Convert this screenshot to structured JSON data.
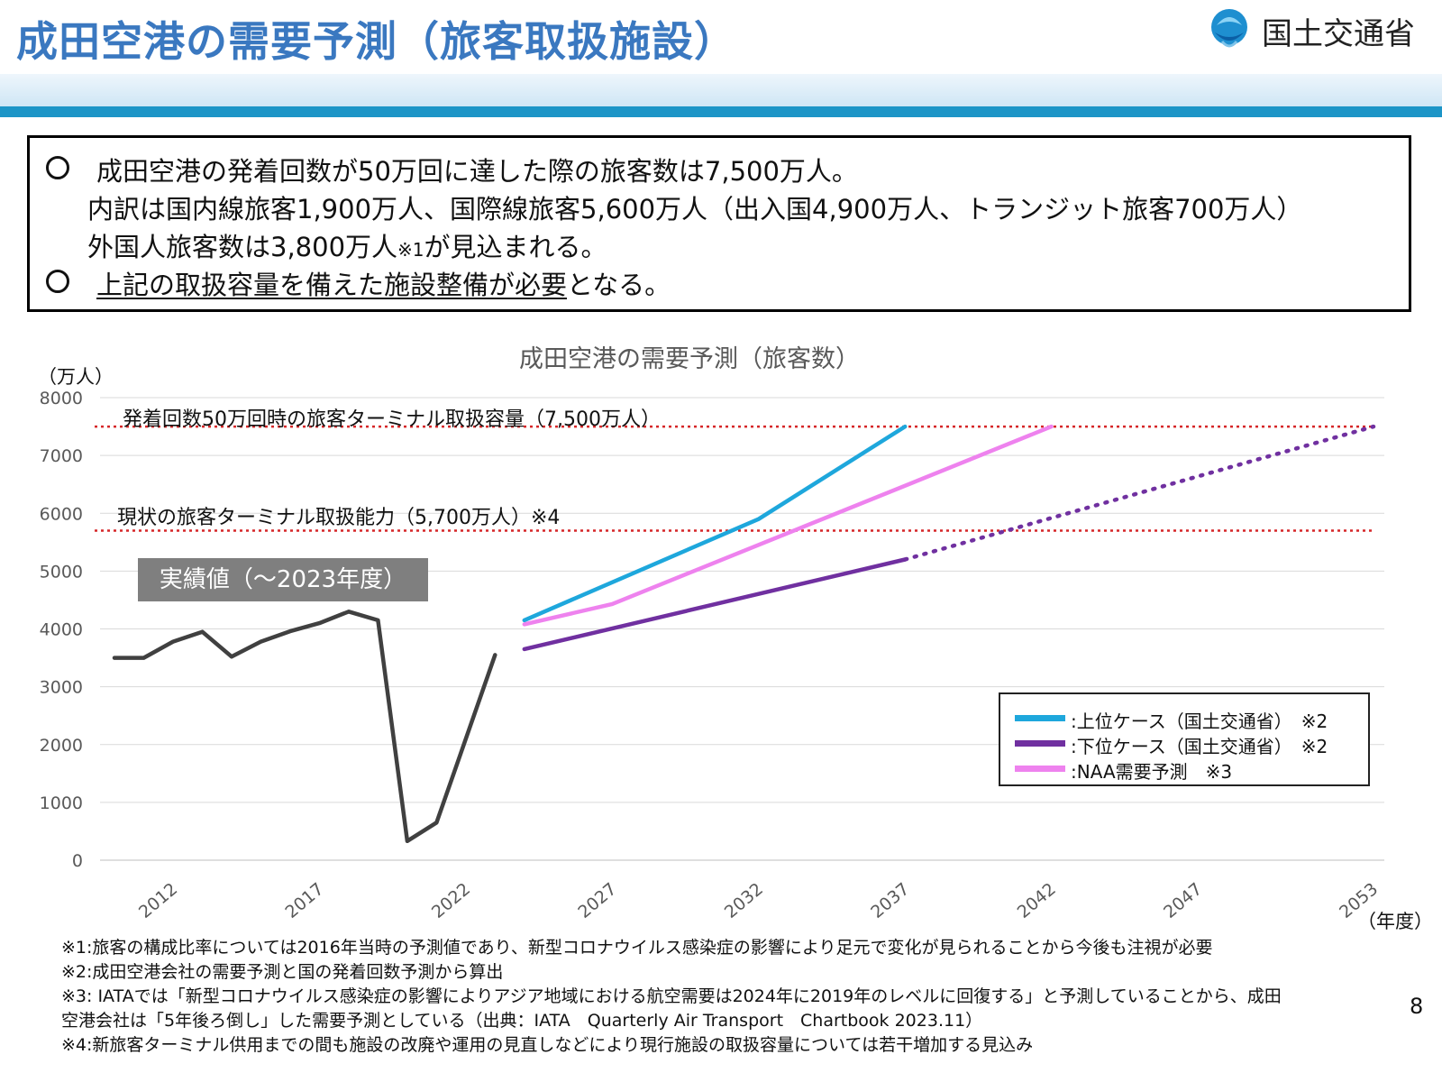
{
  "header": {
    "title": "成田空港の需要予測（旅客取扱施設）",
    "ministry": "国土交通省"
  },
  "summary": {
    "line1": "成田空港の発着回数が50万回に達した際の旅客数は7,500万人。",
    "line2": "内訳は国内線旅客1,900万人、国際線旅客5,600万人（出入国4,900万人、トランジット旅客700万人）",
    "line3_main": "外国人旅客数は3,800万人",
    "line3_note": "※1",
    "line3_end": "が見込まれる。",
    "line4_underlined": "上記の取扱容量を備えた施設整備が必要",
    "line4_end": "となる。"
  },
  "chart_data": {
    "type": "line",
    "title": "成田空港の需要予測（旅客数）",
    "ylabel": "（万人）",
    "xlabel": "（年度）",
    "ylim": [
      0,
      8000
    ],
    "y_ticks": [
      "0",
      "1000",
      "2000",
      "3000",
      "4000",
      "5000",
      "6000",
      "7000",
      "8000"
    ],
    "x_ticks": [
      "2012",
      "2017",
      "2022",
      "2027",
      "2032",
      "2037",
      "2042",
      "2047",
      "2053"
    ],
    "reference_lines": [
      {
        "label": "発着回数50万回時の旅客ターミナル取扱容量（7,500万人）",
        "value": 7500,
        "color": "#d62728"
      },
      {
        "label": "現状の旅客ターミナル取扱能力（5,700万人）※4",
        "value": 5700,
        "color": "#d62728"
      }
    ],
    "actual_label": "実績値（〜2023年度）",
    "series": [
      {
        "key": "actual",
        "color": "#404040",
        "dashed": false,
        "x": [
          2010,
          2011,
          2012,
          2013,
          2014,
          2015,
          2016,
          2017,
          2018,
          2019,
          2020,
          2021,
          2022,
          2023
        ],
        "y": [
          3500,
          3500,
          3780,
          3950,
          3520,
          3780,
          3960,
          4100,
          4300,
          4150,
          330,
          650,
          2100,
          3550
        ]
      },
      {
        "key": "upper",
        "name": "上位ケース（国土交通省）　※2",
        "color": "#1ea7dc",
        "dashed": false,
        "x": [
          2024,
          2032,
          2037
        ],
        "y": [
          4150,
          5900,
          7500
        ]
      },
      {
        "key": "lower",
        "name": "下位ケース（国土交通省）　※2",
        "color": "#7030a0",
        "dashed": false,
        "x": [
          2024,
          2037
        ],
        "y": [
          3650,
          5200
        ]
      },
      {
        "key": "lower_ext",
        "color": "#7030a0",
        "dashed": true,
        "x": [
          2037,
          2053
        ],
        "y": [
          5200,
          7500
        ]
      },
      {
        "key": "naa",
        "name": "NAA需要予測　※3",
        "color": "#ee82ee",
        "dashed": false,
        "x": [
          2024,
          2027,
          2042
        ],
        "y": [
          4080,
          4430,
          7500
        ]
      }
    ]
  },
  "legend": {
    "upper": ":上位ケース（国土交通省）　※2",
    "lower": ":下位ケース（国土交通省）　※2",
    "naa": ":NAA需要予測　※3"
  },
  "notes": {
    "n1": "※1:旅客の構成比率については2016年当時の予測値であり、新型コロナウイルス感染症の影響により足元で変化が見られることから今後も注視が必要",
    "n2": "※2:成田空港会社の需要予測と国の発着回数予測から算出",
    "n3a": "※3: IATAでは「新型コロナウイルス感染症の影響によりアジア地域における航空需要は2024年に2019年のレベルに回復する」と予測していることから、成田",
    "n3b": "空港会社は「5年後ろ倒し」した需要予測としている（出典：IATA　Quarterly Air Transport　Chartbook 2023.11）",
    "n4": "※4:新旅客ターミナル供用までの間も施設の改廃や運用の見直しなどにより現行施設の取扱容量については若干増加する見込み"
  },
  "page_number": "8"
}
